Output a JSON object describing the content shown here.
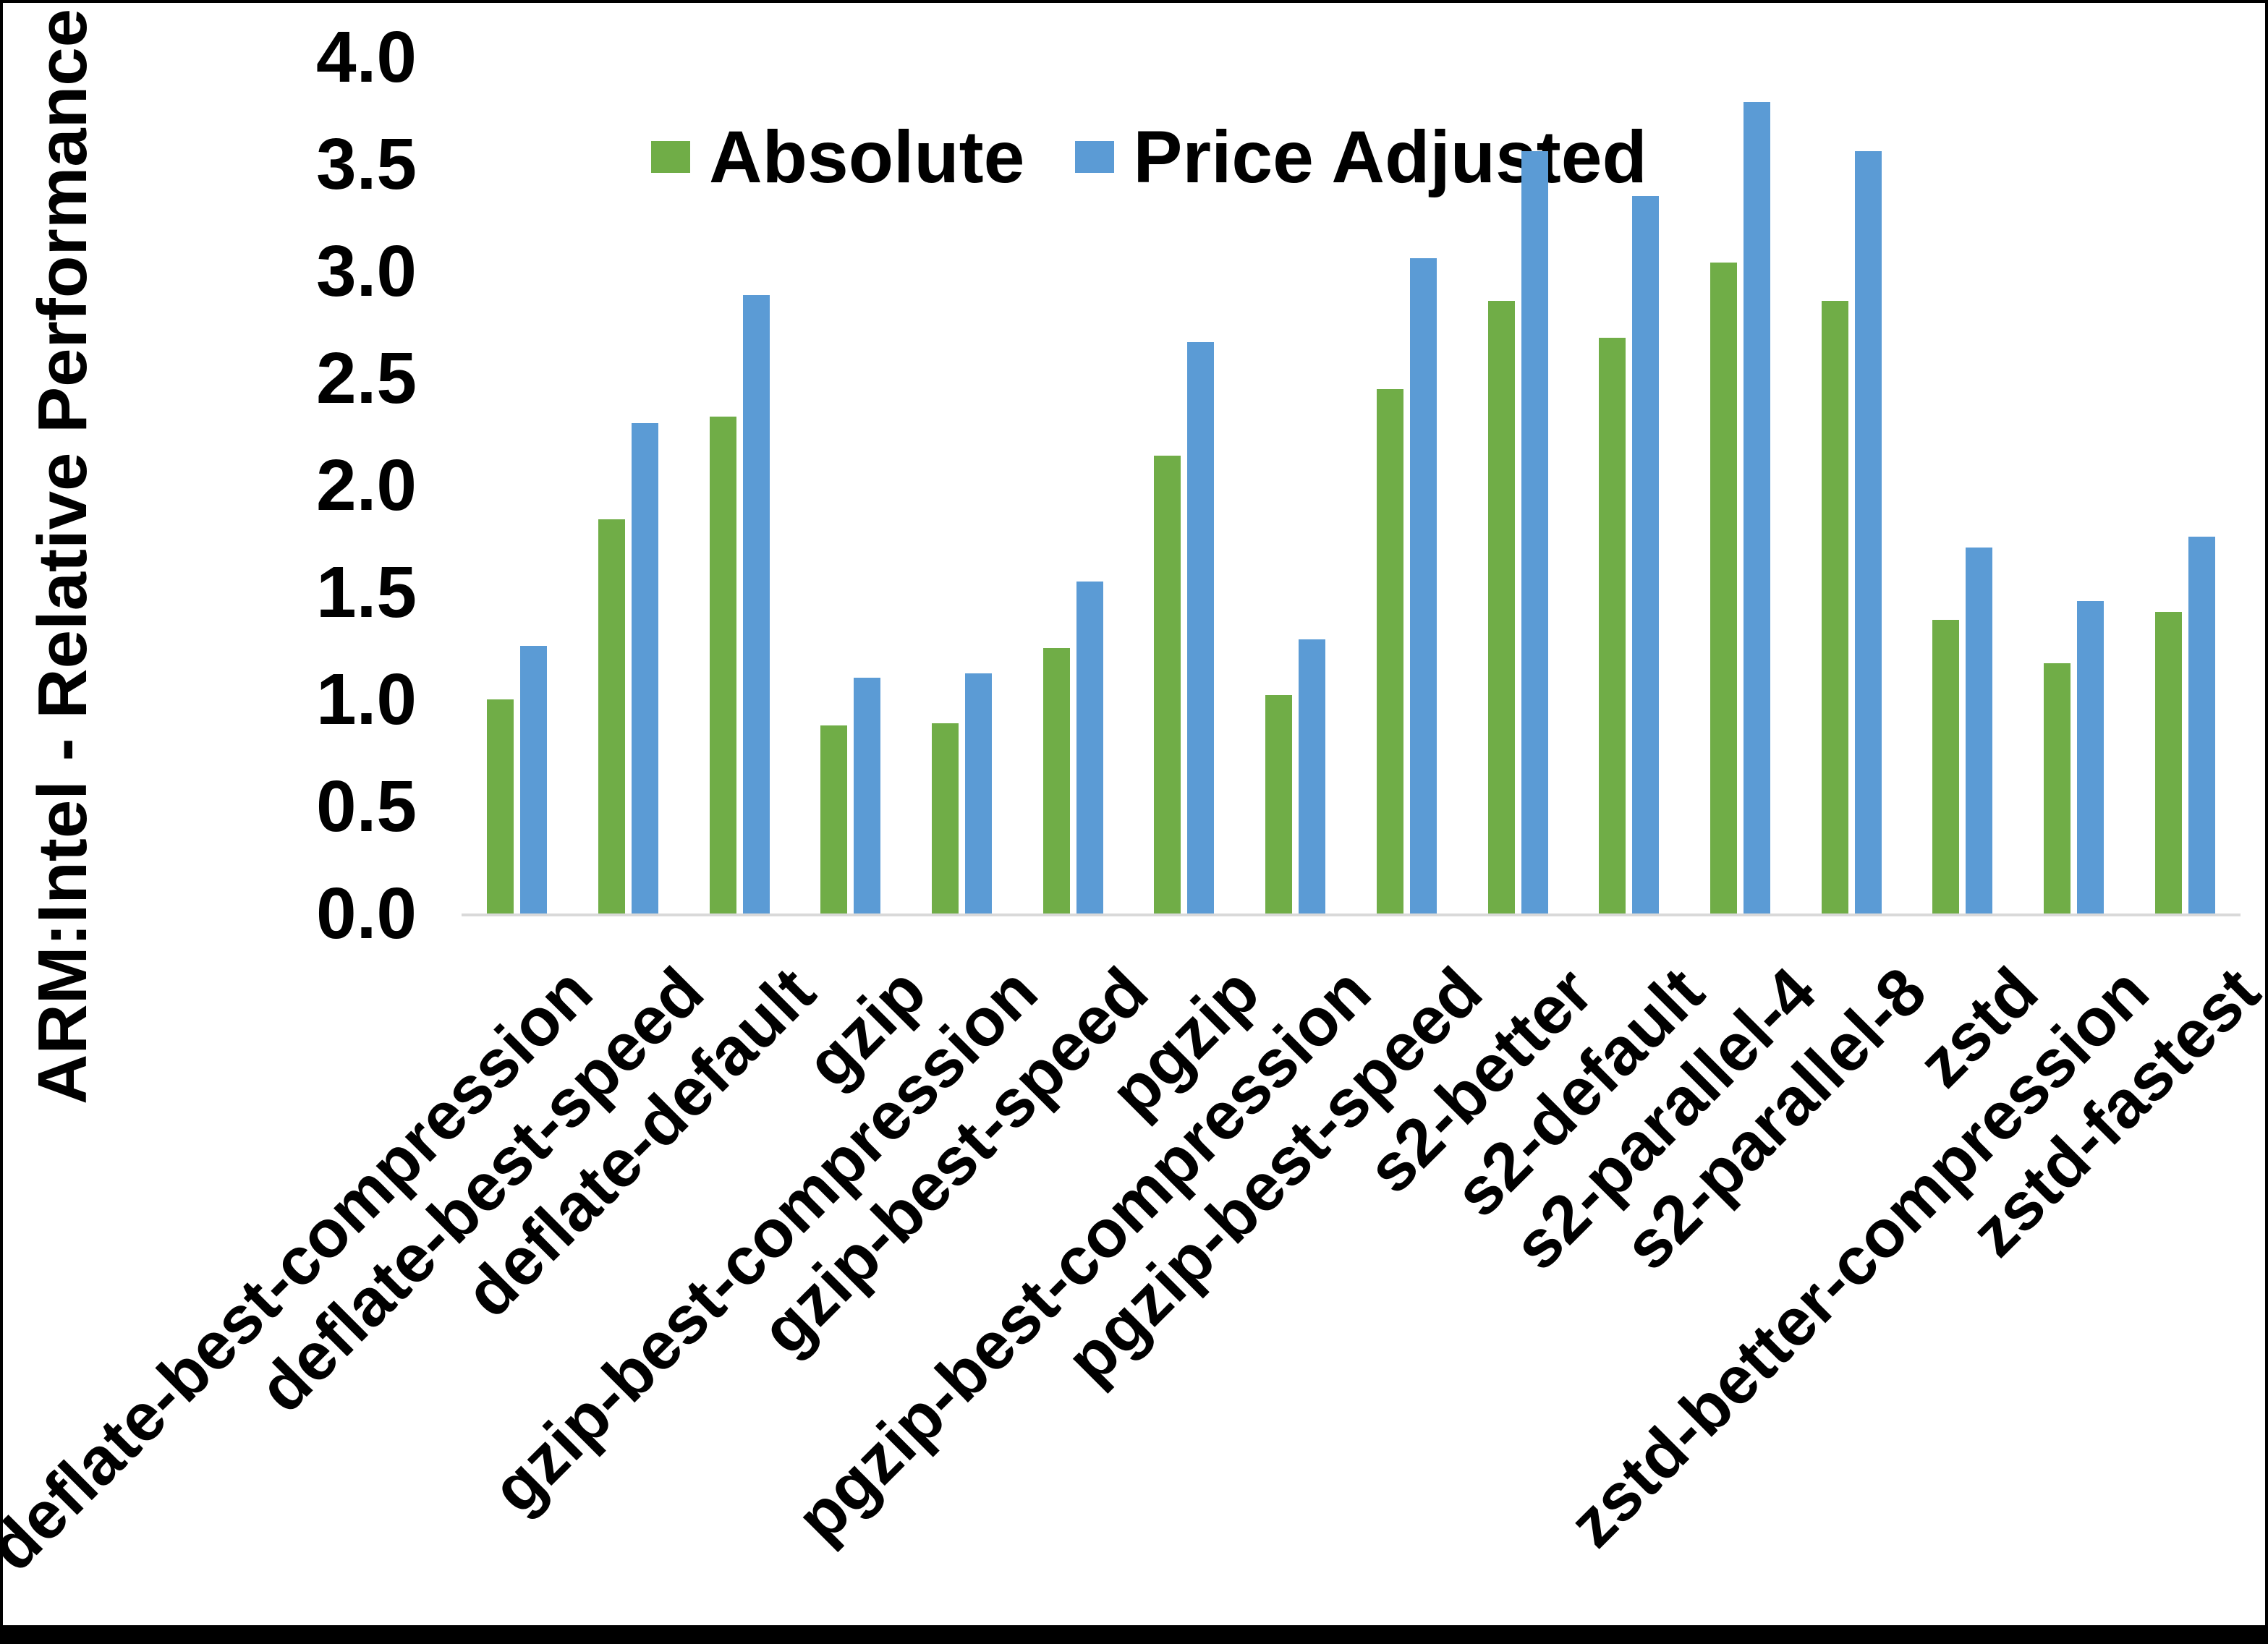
{
  "frame": {
    "border_color": "#000000"
  },
  "legend": {
    "items": [
      {
        "label": "Absolute",
        "color": "#70AD47"
      },
      {
        "label": "Price Adjusted",
        "color": "#5B9BD5"
      }
    ]
  },
  "y_axis": {
    "title": "ARM:Intel - Relative Performance",
    "tick_labels": [
      "0.0",
      "0.5",
      "1.0",
      "1.5",
      "2.0",
      "2.5",
      "3.0",
      "3.5",
      "4.0"
    ]
  },
  "chart_data": {
    "type": "bar",
    "title": "",
    "xlabel": "",
    "ylabel": "ARM:Intel - Relative Performance",
    "ylim": [
      0,
      4
    ],
    "ytick_step": 0.5,
    "yticks": [
      0,
      0.5,
      1.0,
      1.5,
      2.0,
      2.5,
      3.0,
      3.5,
      4.0
    ],
    "grid": false,
    "legend_position": "top-center",
    "background": "#ffffff",
    "axis_line_color": "#d9d9d9",
    "text_color": "#000000",
    "categories": [
      "deflate-best-compression",
      "deflate-best-speed",
      "deflate-default",
      "gzip",
      "gzip-best-compression",
      "gzip-best-speed",
      "pgzip",
      "pgzip-best-compression",
      "pgzip-best-speed",
      "s2-better",
      "s2-default",
      "s2-parallel-4",
      "s2-parallel-8",
      "zstd",
      "zstd-better-compression",
      "zstd-fastest"
    ],
    "series": [
      {
        "name": "Absolute",
        "color": "#70AD47",
        "values": [
          1.0,
          1.84,
          2.32,
          0.88,
          0.89,
          1.24,
          2.14,
          1.02,
          2.45,
          2.86,
          2.69,
          3.04,
          2.86,
          1.37,
          1.17,
          1.41
        ]
      },
      {
        "name": "Price Adjusted",
        "color": "#5B9BD5",
        "values": [
          1.25,
          2.29,
          2.89,
          1.1,
          1.12,
          1.55,
          2.67,
          1.28,
          3.06,
          3.56,
          3.35,
          3.79,
          3.56,
          1.71,
          1.46,
          1.76
        ]
      }
    ]
  }
}
